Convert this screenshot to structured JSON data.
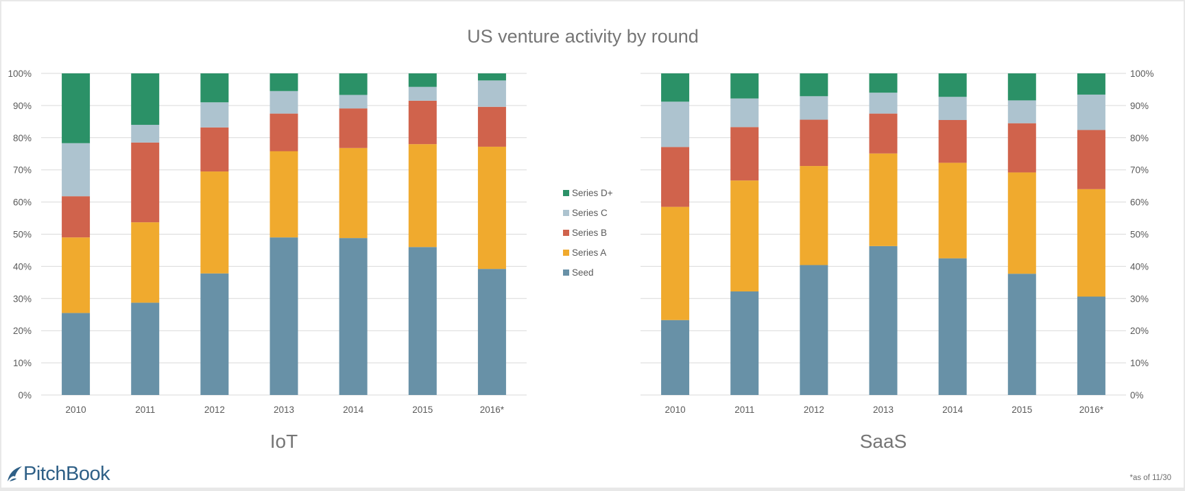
{
  "title": "US venture activity by round",
  "colors": {
    "Seed": "#6891a7",
    "Series A": "#f0aa2e",
    "Series B": "#d0634c",
    "Series C": "#adc3cf",
    "Series D+": "#2b9167",
    "grid": "#d9d9d9",
    "text": "#595959"
  },
  "legend": [
    "Series D+",
    "Series C",
    "Series B",
    "Series A",
    "Seed"
  ],
  "logo": "PitchBook",
  "footnote": "*as of 11/30",
  "chart_data": [
    {
      "type": "bar",
      "stacked": true,
      "title": "IoT",
      "categories": [
        "2010",
        "2011",
        "2012",
        "2013",
        "2014",
        "2015",
        "2016*"
      ],
      "ylim": [
        0,
        100
      ],
      "yticks": [
        "0%",
        "10%",
        "20%",
        "30%",
        "40%",
        "50%",
        "60%",
        "70%",
        "80%",
        "90%",
        "100%"
      ],
      "grid": true,
      "axis_side": "left",
      "series": [
        {
          "name": "Seed",
          "values": [
            25.5,
            28.7,
            37.8,
            49.0,
            48.8,
            46.0,
            39.2
          ]
        },
        {
          "name": "Series A",
          "values": [
            23.5,
            25.0,
            31.7,
            26.8,
            28.0,
            32.0,
            38.0
          ]
        },
        {
          "name": "Series B",
          "values": [
            12.8,
            24.8,
            13.7,
            11.7,
            12.3,
            13.5,
            12.4
          ]
        },
        {
          "name": "Series C",
          "values": [
            16.5,
            5.5,
            7.8,
            7.0,
            4.2,
            4.3,
            8.2
          ]
        },
        {
          "name": "Series D+",
          "values": [
            21.7,
            16.0,
            9.0,
            5.5,
            6.7,
            4.2,
            2.2
          ]
        }
      ]
    },
    {
      "type": "bar",
      "stacked": true,
      "title": "SaaS",
      "categories": [
        "2010",
        "2011",
        "2012",
        "2013",
        "2014",
        "2015",
        "2016*"
      ],
      "ylim": [
        0,
        100
      ],
      "yticks": [
        "0%",
        "10%",
        "20%",
        "30%",
        "40%",
        "50%",
        "60%",
        "70%",
        "80%",
        "90%",
        "100%"
      ],
      "grid": true,
      "axis_side": "right",
      "series": [
        {
          "name": "Seed",
          "values": [
            23.3,
            32.2,
            40.4,
            46.3,
            42.5,
            37.7,
            30.6
          ]
        },
        {
          "name": "Series A",
          "values": [
            35.2,
            34.5,
            30.8,
            28.8,
            29.7,
            31.5,
            33.4
          ]
        },
        {
          "name": "Series B",
          "values": [
            18.6,
            16.6,
            14.4,
            12.4,
            13.3,
            15.3,
            18.4
          ]
        },
        {
          "name": "Series C",
          "values": [
            14.1,
            8.9,
            7.3,
            6.5,
            7.2,
            7.1,
            11.0
          ]
        },
        {
          "name": "Series D+",
          "values": [
            8.8,
            7.8,
            7.1,
            6.0,
            7.3,
            8.4,
            6.6
          ]
        }
      ]
    }
  ]
}
